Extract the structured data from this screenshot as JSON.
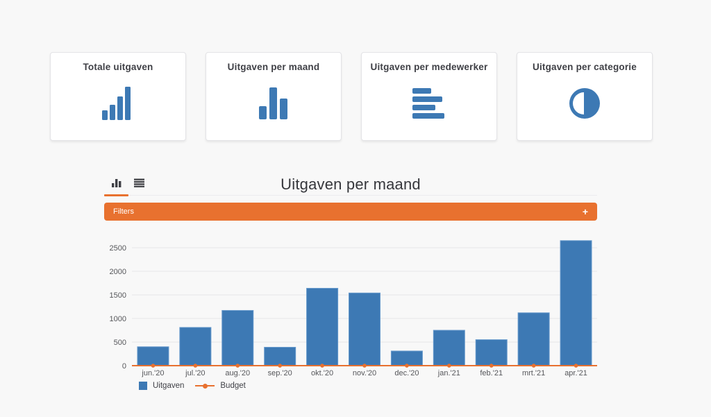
{
  "page": {
    "background": "#f8f8f8"
  },
  "nav_cards": [
    {
      "title": "Totale uitgaven",
      "icon": "ascending-bars-icon"
    },
    {
      "title": "Uitgaven per maand",
      "icon": "vertical-bars-icon"
    },
    {
      "title": "Uitgaven per medewerker",
      "icon": "horizontal-bars-icon"
    },
    {
      "title": "Uitgaven per categorie",
      "icon": "half-pie-icon"
    }
  ],
  "chart_section": {
    "title": "Uitgaven per maand",
    "toggles": [
      {
        "icon": "bar-chart-icon",
        "active": true
      },
      {
        "icon": "list-icon",
        "active": false
      }
    ],
    "filters": {
      "label": "Filters",
      "expand_symbol": "+",
      "color": "#e8712f"
    }
  },
  "colors": {
    "bar_blue": "#3d79b4",
    "accent_orange": "#e8712f",
    "grid_line": "#e6e6e9",
    "axis_line": "#a9a9ac",
    "tick_text": "#55565a"
  },
  "chart_data": {
    "type": "bar",
    "title": "Uitgaven per maand",
    "categories": [
      "jun.'20",
      "jul.'20",
      "aug.'20",
      "sep.'20",
      "okt.'20",
      "nov.'20",
      "dec.'20",
      "jan.'21",
      "feb.'21",
      "mrt.'21",
      "apr.'21"
    ],
    "series": [
      {
        "name": "Uitgaven",
        "type": "bar",
        "color": "#3d79b4",
        "border_color": "#6699cc",
        "values": [
          400,
          810,
          1170,
          390,
          1640,
          1540,
          310,
          750,
          550,
          1120,
          2650
        ]
      },
      {
        "name": "Budget",
        "type": "line",
        "color": "#e8712f",
        "values": [
          0,
          0,
          0,
          0,
          0,
          0,
          0,
          0,
          0,
          0,
          0
        ]
      }
    ],
    "xlabel": "",
    "ylabel": "",
    "y_ticks": [
      0,
      500,
      1000,
      1500,
      2000,
      2500
    ],
    "ylim": [
      0,
      2650
    ],
    "grid": true,
    "legend_position": "bottom-left"
  }
}
